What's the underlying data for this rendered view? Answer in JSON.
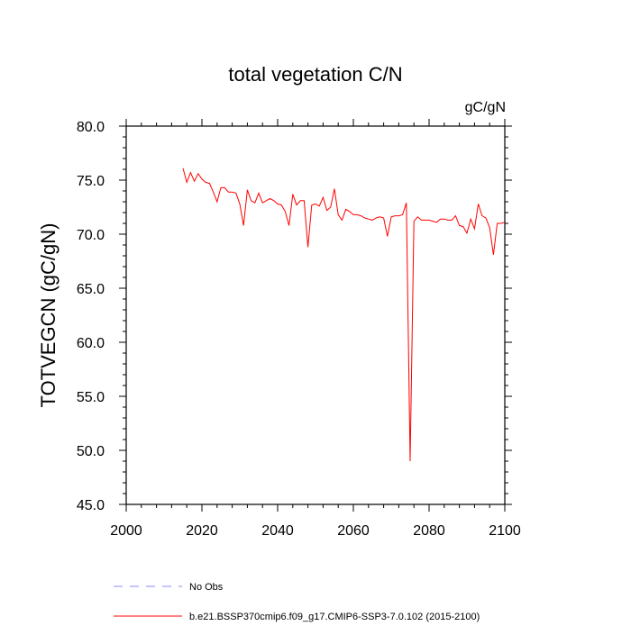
{
  "chart_data": {
    "type": "line",
    "title": "total vegetation C/N",
    "units": "gC/gN",
    "ylabel": "TOTVEGCN  (gC/gN)",
    "xlabel": "",
    "xlim": [
      2000,
      2100
    ],
    "ylim": [
      45,
      80
    ],
    "x_ticks": [
      2000,
      2020,
      2040,
      2060,
      2080,
      2100
    ],
    "y_ticks": [
      45,
      50,
      55,
      60,
      65,
      70,
      75,
      80
    ],
    "y_tick_labels": [
      "45.0",
      "50.0",
      "55.0",
      "60.0",
      "65.0",
      "70.0",
      "75.0",
      "80.0"
    ],
    "series": [
      {
        "name": "b.e21.BSSP370cmip6.f09_g17.CMIP6-SSP3-7.0.102 (2015-2100)",
        "color": "#ff0000",
        "dash": "solid",
        "x": [
          2015,
          2016,
          2017,
          2018,
          2019,
          2020,
          2021,
          2022,
          2023,
          2024,
          2025,
          2026,
          2027,
          2028,
          2029,
          2030,
          2031,
          2032,
          2033,
          2034,
          2035,
          2036,
          2037,
          2038,
          2039,
          2040,
          2041,
          2042,
          2043,
          2044,
          2045,
          2046,
          2047,
          2048,
          2049,
          2050,
          2051,
          2052,
          2053,
          2054,
          2055,
          2056,
          2057,
          2058,
          2059,
          2060,
          2061,
          2062,
          2063,
          2064,
          2065,
          2066,
          2067,
          2068,
          2069,
          2070,
          2071,
          2072,
          2073,
          2074,
          2075,
          2076,
          2077,
          2078,
          2079,
          2080,
          2081,
          2082,
          2083,
          2084,
          2085,
          2086,
          2087,
          2088,
          2089,
          2090,
          2091,
          2092,
          2093,
          2094,
          2095,
          2096,
          2097,
          2098,
          2099,
          2100
        ],
        "values": [
          76.1,
          74.8,
          75.7,
          74.9,
          75.6,
          75.1,
          74.8,
          74.7,
          73.9,
          73.0,
          74.3,
          74.3,
          73.9,
          73.9,
          73.8,
          72.8,
          70.8,
          74.1,
          73.1,
          72.9,
          73.8,
          72.9,
          73.1,
          73.3,
          73.1,
          72.8,
          72.7,
          72.1,
          70.8,
          73.7,
          72.7,
          73.1,
          73.1,
          68.8,
          72.7,
          72.8,
          72.6,
          73.4,
          72.2,
          72.5,
          74.2,
          71.8,
          71.3,
          72.3,
          72.1,
          71.8,
          71.8,
          71.7,
          71.5,
          71.4,
          71.3,
          71.5,
          71.6,
          71.5,
          69.8,
          71.6,
          71.7,
          71.7,
          71.8,
          72.9,
          49.0,
          71.2,
          71.6,
          71.3,
          71.3,
          71.3,
          71.2,
          71.1,
          71.4,
          71.4,
          71.3,
          71.3,
          71.7,
          70.8,
          70.7,
          70.1,
          71.4,
          70.5,
          72.8,
          71.7,
          71.5,
          70.6,
          68.1,
          71.0,
          71.0,
          71.1
        ]
      },
      {
        "name": "No Obs",
        "color": "#8888ff",
        "dash": "dashed",
        "x": [],
        "values": []
      }
    ]
  }
}
